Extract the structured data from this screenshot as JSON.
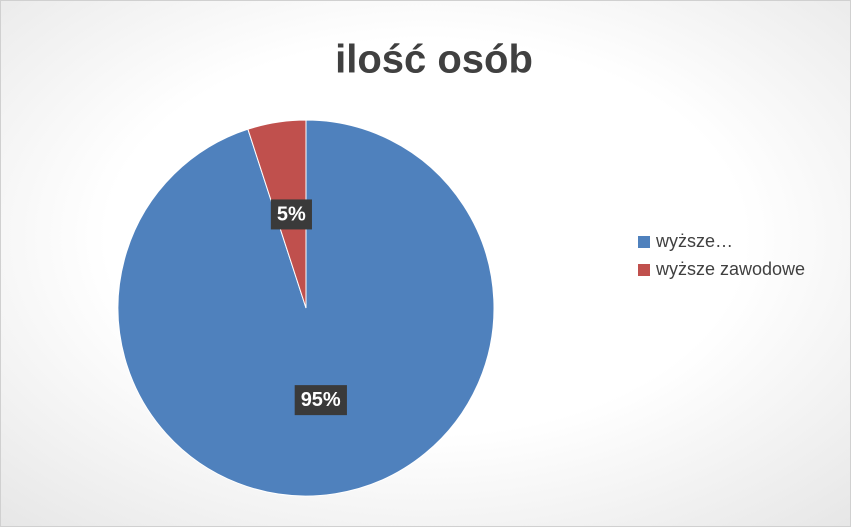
{
  "chart_data": {
    "type": "pie",
    "title": "ilość osób",
    "categories": [
      "wyższe…",
      "wyższe zawodowe"
    ],
    "values": [
      95,
      5
    ],
    "value_labels": [
      "95%",
      "5%"
    ],
    "colors": [
      "#4f81bd",
      "#c0504d"
    ],
    "legend": "right"
  }
}
